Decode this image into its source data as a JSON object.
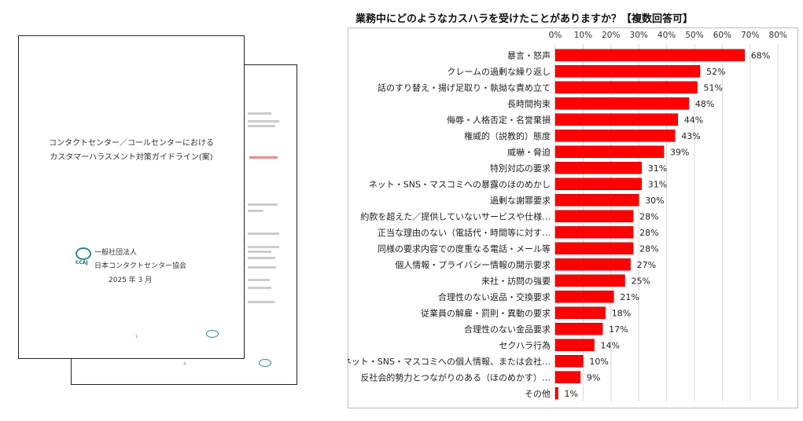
{
  "document": {
    "title_lines": [
      "コンタクトセンター／コールセンターにおける",
      "カスタマーハラスメント対策ガイドライン(案)"
    ],
    "org_type": "一般社団法人",
    "org_name": "日本コンタクトセンター協会",
    "date": "2025 年 3 月",
    "logo_text": "CCAJ",
    "front_page_number": "1",
    "back_page_number": "4"
  },
  "colors": {
    "bar": "#ff0000",
    "bar_stroke": "#b00000",
    "grid": "#d9d9d9",
    "text": "#222222"
  },
  "chart_data": {
    "type": "bar",
    "orientation": "horizontal",
    "title": "業務中にどのようなカスハラを受けたことがありますか？【複数回答可】",
    "xlim": [
      0,
      80
    ],
    "ticks": [
      "0%",
      "10%",
      "20%",
      "30%",
      "40%",
      "50%",
      "60%",
      "70%",
      "80%"
    ],
    "tick_values": [
      0,
      10,
      20,
      30,
      40,
      50,
      60,
      70,
      80
    ],
    "grid": true,
    "categories": [
      "暴言・怒声",
      "クレームの過剰な繰り返し",
      "話のすり替え・揚げ足取り・執拗な責め立て",
      "長時間拘束",
      "侮辱・人格否定・名誉棄損",
      "権威的（説教的）態度",
      "威嚇・脅迫",
      "特別対応の要求",
      "ネット・SNS・マスコミへの暴露のほのめかし",
      "過剰な謝罪要求",
      "約款を超えた／提供していないサービスや仕様…",
      "正当な理由のない（電話代・時間等に対す…",
      "同様の要求内容での度重なる電話・メール等",
      "個人情報・プライバシー情報の開示要求",
      "来社・訪問の強要",
      "合理性のない返品・交換要求",
      "従業員の解雇・罰則・異動の要求",
      "合理性のない金品要求",
      "セクハラ行為",
      "ネット・SNS・マスコミへの個人情報、または会社…",
      "反社会的勢力とつながりのある（ほのめかす）…",
      "その他"
    ],
    "values": [
      68,
      52,
      51,
      48,
      44,
      43,
      39,
      31,
      31,
      30,
      28,
      28,
      28,
      27,
      25,
      21,
      18,
      17,
      14,
      10,
      9,
      1
    ],
    "value_labels": [
      "68%",
      "52%",
      "51%",
      "48%",
      "44%",
      "43%",
      "39%",
      "31%",
      "31%",
      "30%",
      "28%",
      "28%",
      "28%",
      "27%",
      "25%",
      "21%",
      "18%",
      "17%",
      "14%",
      "10%",
      "9%",
      "1%"
    ]
  }
}
